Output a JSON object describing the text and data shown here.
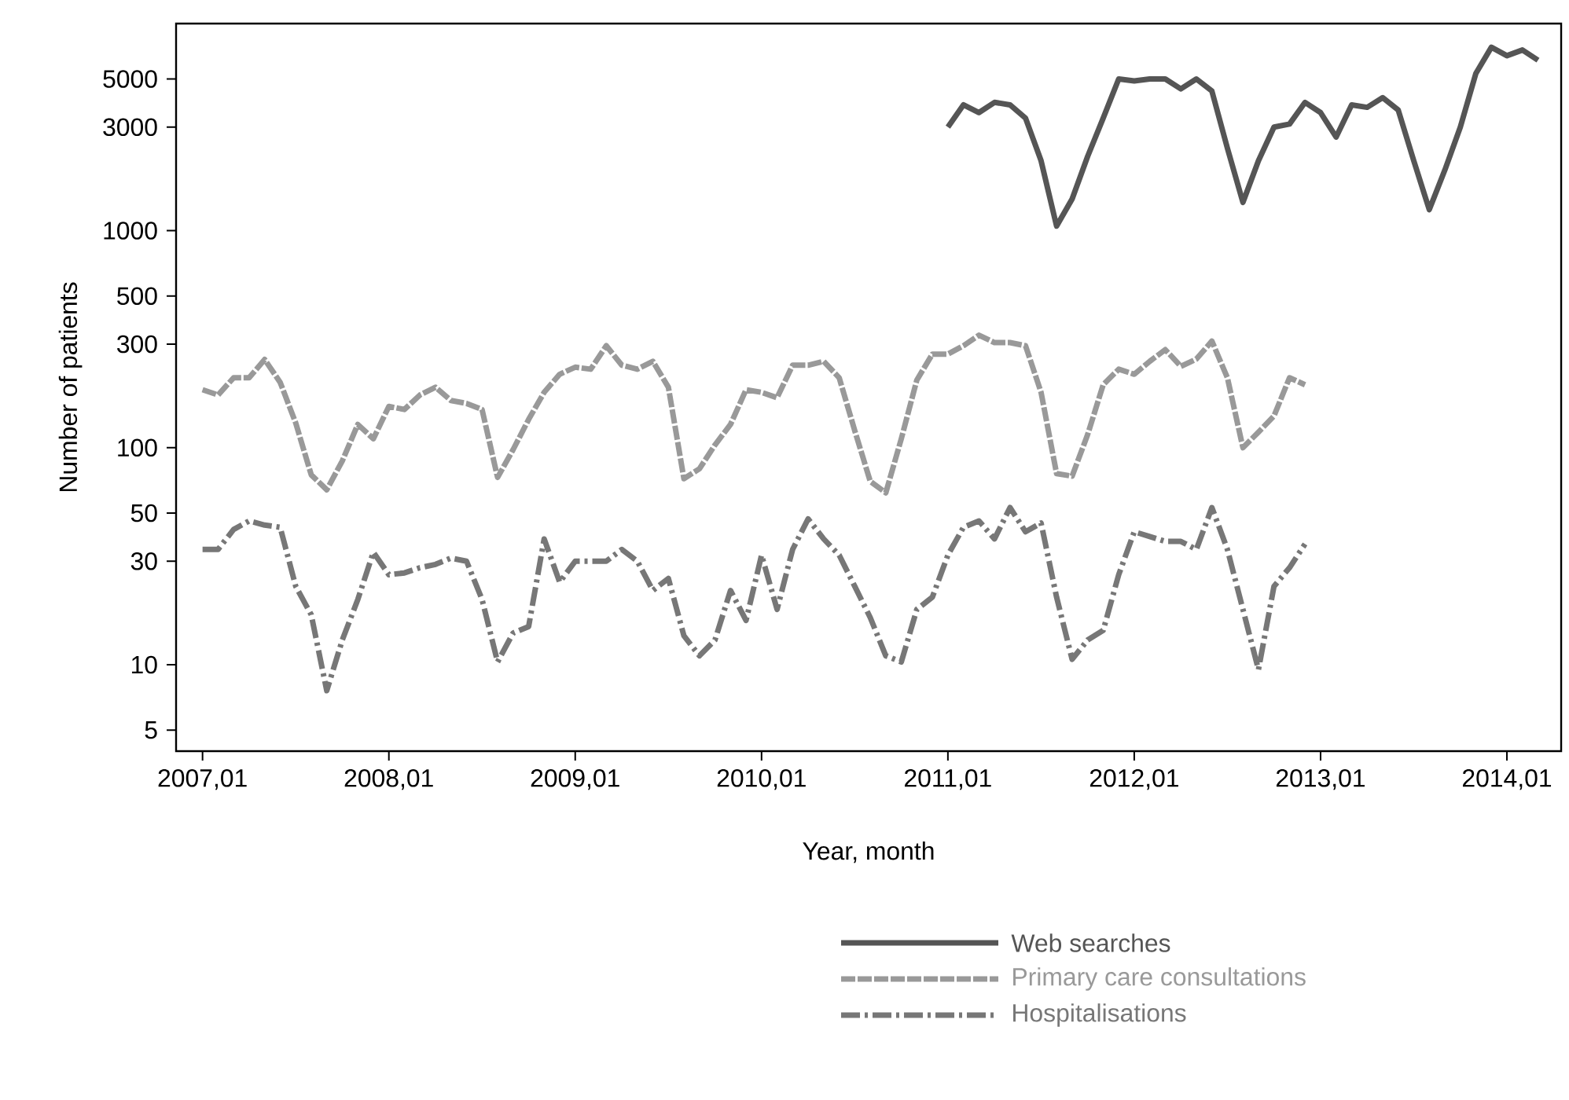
{
  "chart_data": {
    "type": "line",
    "xlabel": "Year, month",
    "ylabel": "Number of patients",
    "log": "y",
    "legend": "bottom",
    "marker": "none",
    "xlim": [
      "2006-11-10",
      "2014-04-16"
    ],
    "ylim": [
      4,
      9000
    ],
    "xticks": [
      {
        "value": "2007-01",
        "label": "2007,01"
      },
      {
        "value": "2008-01",
        "label": "2008,01"
      },
      {
        "value": "2009-01",
        "label": "2009,01"
      },
      {
        "value": "2010-01",
        "label": "2010,01"
      },
      {
        "value": "2011-01",
        "label": "2011,01"
      },
      {
        "value": "2012-01",
        "label": "2012,01"
      },
      {
        "value": "2013-01",
        "label": "2013,01"
      },
      {
        "value": "2014-01",
        "label": "2014,01"
      }
    ],
    "yticks": [
      5,
      10,
      30,
      50,
      100,
      300,
      500,
      1000,
      3000,
      5000
    ],
    "series": [
      {
        "name": "Web searches",
        "color": "#555555",
        "line_style": "solid",
        "x": [
          "2011-01",
          "2011-02",
          "2011-03",
          "2011-04",
          "2011-05",
          "2011-06",
          "2011-07",
          "2011-08",
          "2011-09",
          "2011-10",
          "2011-11",
          "2011-12",
          "2012-01",
          "2012-02",
          "2012-03",
          "2012-04",
          "2012-05",
          "2012-06",
          "2012-07",
          "2012-08",
          "2012-09",
          "2012-10",
          "2012-11",
          "2012-12",
          "2013-01",
          "2013-02",
          "2013-03",
          "2013-04",
          "2013-05",
          "2013-06",
          "2013-07",
          "2013-08",
          "2013-09",
          "2013-10",
          "2013-11",
          "2013-12",
          "2014-01",
          "2014-02",
          "2014-03"
        ],
        "values": [
          3000,
          3800,
          3500,
          3900,
          3800,
          3300,
          2100,
          1050,
          1400,
          2200,
          3300,
          5000,
          4900,
          5000,
          5000,
          4500,
          5000,
          4400,
          2400,
          1350,
          2100,
          3000,
          3100,
          3900,
          3500,
          2700,
          3800,
          3700,
          4100,
          3600,
          2100,
          1250,
          1900,
          3000,
          5300,
          7000,
          6400,
          6800,
          6100
        ]
      },
      {
        "name": "Primary care consultations",
        "color": "#999999",
        "line_style": "dashed",
        "x": [
          "2007-01",
          "2007-02",
          "2007-03",
          "2007-04",
          "2007-05",
          "2007-06",
          "2007-07",
          "2007-08",
          "2007-09",
          "2007-10",
          "2007-11",
          "2007-12",
          "2008-01",
          "2008-02",
          "2008-03",
          "2008-04",
          "2008-05",
          "2008-06",
          "2008-07",
          "2008-08",
          "2008-09",
          "2008-10",
          "2008-11",
          "2008-12",
          "2009-01",
          "2009-02",
          "2009-03",
          "2009-04",
          "2009-05",
          "2009-06",
          "2009-07",
          "2009-08",
          "2009-09",
          "2009-10",
          "2009-11",
          "2009-12",
          "2010-01",
          "2010-02",
          "2010-03",
          "2010-04",
          "2010-05",
          "2010-06",
          "2010-07",
          "2010-08",
          "2010-09",
          "2010-10",
          "2010-11",
          "2010-12",
          "2011-01",
          "2011-02",
          "2011-03",
          "2011-04",
          "2011-05",
          "2011-06",
          "2011-07",
          "2011-08",
          "2011-09",
          "2011-10",
          "2011-11",
          "2011-12",
          "2012-01",
          "2012-02",
          "2012-03",
          "2012-04",
          "2012-05",
          "2012-06",
          "2012-07",
          "2012-08",
          "2012-09",
          "2012-10",
          "2012-11",
          "2012-12"
        ],
        "values": [
          185,
          175,
          210,
          210,
          255,
          200,
          130,
          75,
          64,
          87,
          128,
          110,
          155,
          150,
          175,
          190,
          165,
          160,
          150,
          73,
          98,
          135,
          180,
          218,
          235,
          230,
          295,
          240,
          230,
          250,
          190,
          72,
          80,
          103,
          128,
          185,
          180,
          170,
          240,
          240,
          250,
          210,
          120,
          70,
          62,
          110,
          205,
          270,
          270,
          295,
          330,
          305,
          305,
          295,
          180,
          76,
          74,
          115,
          195,
          230,
          218,
          250,
          283,
          237,
          256,
          310,
          210,
          100,
          118,
          140,
          210,
          195
        ]
      },
      {
        "name": "Hospitalisations",
        "color": "#777777",
        "line_style": "dashdot",
        "x": [
          "2007-01",
          "2007-02",
          "2007-03",
          "2007-04",
          "2007-05",
          "2007-06",
          "2007-07",
          "2007-08",
          "2007-09",
          "2007-10",
          "2007-11",
          "2007-12",
          "2008-01",
          "2008-02",
          "2008-03",
          "2008-04",
          "2008-05",
          "2008-06",
          "2008-07",
          "2008-08",
          "2008-09",
          "2008-10",
          "2008-11",
          "2008-12",
          "2009-01",
          "2009-02",
          "2009-03",
          "2009-04",
          "2009-05",
          "2009-06",
          "2009-07",
          "2009-08",
          "2009-09",
          "2009-10",
          "2009-11",
          "2009-12",
          "2010-01",
          "2010-02",
          "2010-03",
          "2010-04",
          "2010-05",
          "2010-06",
          "2010-07",
          "2010-08",
          "2010-09",
          "2010-10",
          "2010-11",
          "2010-12",
          "2011-01",
          "2011-02",
          "2011-03",
          "2011-04",
          "2011-05",
          "2011-06",
          "2011-07",
          "2011-08",
          "2011-09",
          "2011-10",
          "2011-11",
          "2011-12",
          "2012-01",
          "2012-02",
          "2012-03",
          "2012-04",
          "2012-05",
          "2012-06",
          "2012-07",
          "2012-08",
          "2012-09",
          "2012-10",
          "2012-11",
          "2012-12"
        ],
        "values": [
          34,
          34,
          42,
          46,
          44,
          43,
          23,
          17,
          7.6,
          13,
          20,
          33,
          26,
          26.5,
          28,
          29,
          31,
          30,
          20,
          10.3,
          14,
          15,
          38,
          24,
          30,
          30,
          30,
          34,
          30,
          22,
          25,
          13.6,
          11,
          13,
          22,
          16,
          32,
          18,
          34,
          47,
          38,
          32,
          23,
          16.5,
          11,
          10.3,
          18,
          20.5,
          32,
          43,
          46,
          38,
          53,
          41,
          45,
          20.5,
          10.6,
          13,
          14.4,
          26,
          41,
          39,
          37,
          37,
          34,
          53,
          34,
          18,
          9.5,
          23,
          28,
          36
        ]
      }
    ]
  }
}
